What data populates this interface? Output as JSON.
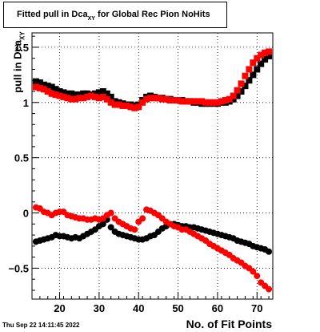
{
  "title": {
    "main": "Fitted pull in Dca",
    "sub": "XY",
    "rest": " for Global Rec Pion NoHits"
  },
  "ylabel": {
    "main": "pull in Dca",
    "sub": "XY"
  },
  "xlabel": "No. of Fit Points",
  "date": "Thu Sep 22 14:11:45 2022",
  "chart_data": {
    "type": "scatter",
    "xlim": [
      13,
      74
    ],
    "ylim": [
      -0.78,
      1.63
    ],
    "xticks": [
      20,
      30,
      40,
      50,
      60,
      70
    ],
    "yticks": [
      -0.5,
      0,
      0.5,
      1,
      1.5
    ],
    "ytick_labels": [
      "−0.5",
      "0",
      "0.5",
      "1",
      "1.5"
    ],
    "grid": true,
    "series": [
      {
        "color": "#000000",
        "marker": "square",
        "x": [
          14,
          15,
          16,
          17,
          18,
          19,
          20,
          21,
          22,
          23,
          24,
          25,
          26,
          27,
          28,
          29,
          30,
          31,
          32,
          33,
          34,
          35,
          36,
          37,
          38,
          39,
          40,
          41,
          42,
          43,
          44,
          45,
          46,
          47,
          48,
          49,
          50,
          51,
          52,
          53,
          54,
          55,
          56,
          57,
          58,
          59,
          60,
          61,
          62,
          63,
          64,
          65,
          66,
          67,
          68,
          69,
          70,
          71,
          72,
          73
        ],
        "y": [
          1.19,
          1.18,
          1.16,
          1.15,
          1.14,
          1.12,
          1.1,
          1.09,
          1.08,
          1.08,
          1.07,
          1.07,
          1.08,
          1.08,
          1.07,
          1.08,
          1.09,
          1.1,
          1.08,
          1.05,
          1.01,
          1.0,
          0.99,
          0.98,
          0.98,
          0.97,
          0.98,
          1.02,
          1.05,
          1.06,
          1.05,
          1.04,
          1.04,
          1.03,
          1.03,
          1.02,
          1.02,
          1.02,
          1.01,
          1.01,
          1.0,
          1.0,
          0.99,
          0.99,
          0.99,
          0.99,
          0.99,
          1.0,
          1.0,
          1.01,
          1.03,
          1.06,
          1.1,
          1.15,
          1.2,
          1.25,
          1.3,
          1.35,
          1.39,
          1.42
        ]
      },
      {
        "color": "#ff0000",
        "marker": "square",
        "x": [
          14,
          15,
          16,
          17,
          18,
          19,
          20,
          21,
          22,
          23,
          24,
          25,
          26,
          27,
          28,
          29,
          30,
          31,
          32,
          33,
          34,
          35,
          36,
          37,
          38,
          39,
          40,
          41,
          42,
          43,
          44,
          45,
          46,
          47,
          48,
          49,
          50,
          51,
          52,
          53,
          54,
          55,
          56,
          57,
          58,
          59,
          60,
          61,
          62,
          63,
          64,
          65,
          66,
          67,
          68,
          69,
          70,
          71,
          72,
          73
        ],
        "y": [
          1.14,
          1.13,
          1.12,
          1.1,
          1.08,
          1.07,
          1.06,
          1.05,
          1.04,
          1.03,
          1.03,
          1.04,
          1.04,
          1.05,
          1.06,
          1.05,
          1.04,
          1.05,
          1.03,
          1.0,
          0.98,
          0.98,
          0.97,
          0.97,
          0.96,
          0.95,
          0.96,
          1.0,
          1.03,
          1.04,
          1.04,
          1.04,
          1.03,
          1.03,
          1.02,
          1.02,
          1.02,
          1.01,
          1.01,
          1.01,
          1.01,
          1.01,
          1.01,
          1.0,
          1.0,
          1.0,
          1.0,
          1.01,
          1.02,
          1.03,
          1.06,
          1.11,
          1.17,
          1.24,
          1.3,
          1.36,
          1.4,
          1.43,
          1.45,
          1.46
        ]
      },
      {
        "color": "#000000",
        "marker": "circle",
        "x": [
          14,
          15,
          16,
          17,
          18,
          19,
          20,
          21,
          22,
          23,
          24,
          25,
          26,
          27,
          28,
          29,
          30,
          31,
          32,
          33,
          34,
          35,
          36,
          37,
          38,
          39,
          40,
          41,
          42,
          43,
          44,
          45,
          46,
          47,
          48,
          49,
          50,
          51,
          52,
          53,
          54,
          55,
          56,
          57,
          58,
          59,
          60,
          61,
          62,
          63,
          64,
          65,
          66,
          67,
          68,
          69,
          70,
          71,
          72,
          73
        ],
        "y": [
          -0.26,
          -0.25,
          -0.24,
          -0.23,
          -0.22,
          -0.2,
          -0.21,
          -0.21,
          -0.22,
          -0.23,
          -0.22,
          -0.23,
          -0.21,
          -0.19,
          -0.17,
          -0.15,
          -0.12,
          -0.1,
          -0.06,
          -0.13,
          -0.17,
          -0.19,
          -0.2,
          -0.21,
          -0.22,
          -0.23,
          -0.24,
          -0.24,
          -0.23,
          -0.21,
          -0.2,
          -0.17,
          -0.14,
          -0.12,
          -0.1,
          -0.1,
          -0.11,
          -0.12,
          -0.12,
          -0.13,
          -0.13,
          -0.14,
          -0.15,
          -0.16,
          -0.17,
          -0.18,
          -0.19,
          -0.2,
          -0.21,
          -0.22,
          -0.23,
          -0.25,
          -0.26,
          -0.27,
          -0.28,
          -0.3,
          -0.31,
          -0.32,
          -0.33,
          -0.35
        ]
      },
      {
        "color": "#ff0000",
        "marker": "circle",
        "x": [
          14,
          15,
          16,
          17,
          18,
          19,
          20,
          21,
          22,
          23,
          24,
          25,
          26,
          27,
          28,
          29,
          30,
          31,
          32,
          33,
          34,
          35,
          36,
          37,
          38,
          39,
          40,
          41,
          42,
          43,
          44,
          45,
          46,
          47,
          48,
          49,
          50,
          51,
          52,
          53,
          54,
          55,
          56,
          57,
          58,
          59,
          60,
          61,
          62,
          63,
          64,
          65,
          66,
          67,
          68,
          69,
          70,
          71,
          72,
          73
        ],
        "y": [
          0.05,
          0.04,
          0.01,
          0.0,
          -0.02,
          0.0,
          0.01,
          0.01,
          -0.02,
          -0.03,
          -0.04,
          -0.05,
          -0.05,
          -0.06,
          -0.06,
          -0.05,
          -0.06,
          -0.05,
          -0.02,
          0.0,
          -0.05,
          -0.08,
          -0.1,
          -0.12,
          -0.14,
          -0.15,
          -0.08,
          -0.05,
          0.03,
          0.02,
          0.0,
          -0.02,
          -0.05,
          -0.08,
          -0.1,
          -0.12,
          -0.13,
          -0.15,
          -0.15,
          -0.17,
          -0.19,
          -0.21,
          -0.23,
          -0.25,
          -0.28,
          -0.3,
          -0.32,
          -0.34,
          -0.36,
          -0.38,
          -0.41,
          -0.43,
          -0.45,
          -0.48,
          -0.5,
          -0.53,
          -0.57,
          -0.63,
          -0.66,
          -0.69
        ]
      }
    ]
  }
}
